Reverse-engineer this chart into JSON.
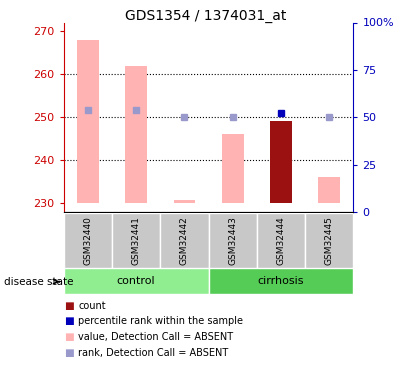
{
  "title": "GDS1354 / 1374031_at",
  "samples": [
    "GSM32440",
    "GSM32441",
    "GSM32442",
    "GSM32443",
    "GSM32444",
    "GSM32445"
  ],
  "ylim_left": [
    228,
    272
  ],
  "ylim_right": [
    0,
    100
  ],
  "yticks_left": [
    230,
    240,
    250,
    260,
    270
  ],
  "yticks_right": [
    0,
    25,
    50,
    75,
    100
  ],
  "ytick_labels_right": [
    "0",
    "25",
    "50",
    "75",
    "100%"
  ],
  "pink_bar_bottom": [
    230,
    230,
    230,
    230,
    230,
    230
  ],
  "pink_bar_top": [
    268,
    262,
    230.8,
    246,
    230.8,
    236
  ],
  "red_bar_bottom": [
    230,
    230,
    230,
    230,
    230,
    230
  ],
  "red_bar_top": [
    230,
    230,
    230,
    230,
    249,
    230
  ],
  "blue_mask": [
    false,
    false,
    false,
    false,
    true,
    false
  ],
  "percentile_pct": [
    54,
    54,
    50,
    50,
    52,
    50
  ],
  "pink_bar_color": "#ffb3b3",
  "red_bar_color": "#9b1010",
  "blue_sq_color": "#0000bb",
  "light_blue_sq_color": "#9999cc",
  "control_color_light": "#90ee90",
  "control_color_dark": "#55cc55",
  "left_axis_color": "#cc0000",
  "right_axis_color": "#0000bb",
  "bar_width": 0.45,
  "sq_markersize": 5,
  "grid_yticks": [
    240,
    250,
    260
  ],
  "legend_items": [
    {
      "color": "#9b1010",
      "label": "count"
    },
    {
      "color": "#0000bb",
      "label": "percentile rank within the sample"
    },
    {
      "color": "#ffb3b3",
      "label": "value, Detection Call = ABSENT"
    },
    {
      "color": "#9999cc",
      "label": "rank, Detection Call = ABSENT"
    }
  ]
}
